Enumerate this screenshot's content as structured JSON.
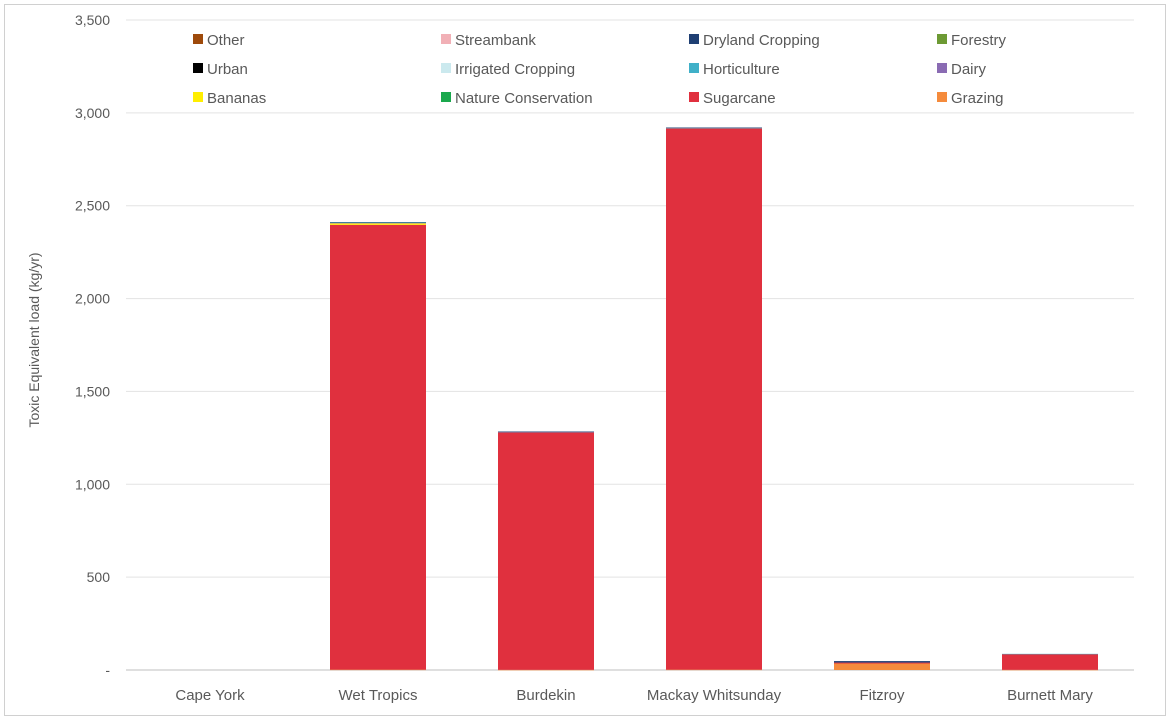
{
  "chart_data": {
    "type": "bar",
    "stacked": true,
    "ylabel": "Toxic Equivalent load  (kg/yr)",
    "xlabel": "",
    "ylim": [
      0,
      3500
    ],
    "yticks": [
      0,
      500,
      1000,
      1500,
      2000,
      2500,
      3000,
      3500
    ],
    "ytick_labels": [
      "-",
      "500",
      "1,000",
      "1,500",
      "2,000",
      "2,500",
      "3,000",
      "3,500"
    ],
    "grid": true,
    "legend_position": "top",
    "categories": [
      "Cape York",
      "Wet Tropics",
      "Burdekin",
      "Mackay Whitsunday",
      "Fitzroy",
      "Burnett Mary"
    ],
    "series": [
      {
        "name": "Grazing",
        "color": "#f58b3c",
        "values": [
          0,
          2,
          1,
          2,
          35,
          1
        ]
      },
      {
        "name": "Sugarcane",
        "color": "#e0303e",
        "values": [
          0,
          2395,
          1280,
          2915,
          5,
          85
        ]
      },
      {
        "name": "Nature Conservation",
        "color": "#1aa84d",
        "values": [
          0,
          0,
          0,
          0,
          0,
          0
        ]
      },
      {
        "name": "Bananas",
        "color": "#ffee00",
        "values": [
          0,
          8,
          0,
          0,
          0,
          0
        ]
      },
      {
        "name": "Dairy",
        "color": "#8a6bb3",
        "values": [
          0,
          3,
          1,
          0,
          0,
          0
        ]
      },
      {
        "name": "Horticulture",
        "color": "#40b0c8",
        "values": [
          0,
          2,
          1,
          2,
          0,
          1
        ]
      },
      {
        "name": "Irrigated Cropping",
        "color": "#cbe9ee",
        "values": [
          0,
          0,
          0,
          0,
          0,
          0
        ]
      },
      {
        "name": "Urban",
        "color": "#000000",
        "values": [
          0,
          0,
          0,
          0,
          0,
          0
        ]
      },
      {
        "name": "Forestry",
        "color": "#6d9a34",
        "values": [
          0,
          0,
          0,
          0,
          0,
          0
        ]
      },
      {
        "name": "Dryland Cropping",
        "color": "#1f3f73",
        "values": [
          0,
          2,
          1,
          2,
          8,
          0
        ]
      },
      {
        "name": "Streambank",
        "color": "#f1b0b6",
        "values": [
          0,
          0,
          0,
          0,
          0,
          0
        ]
      },
      {
        "name": "Other",
        "color": "#9e4a0b",
        "values": [
          0,
          0,
          0,
          0,
          0,
          0
        ]
      }
    ],
    "legend_order": [
      "Other",
      "Streambank",
      "Dryland Cropping",
      "Forestry",
      "Urban",
      "Irrigated Cropping",
      "Horticulture",
      "Dairy",
      "Bananas",
      "Nature Conservation",
      "Sugarcane",
      "Grazing"
    ]
  }
}
